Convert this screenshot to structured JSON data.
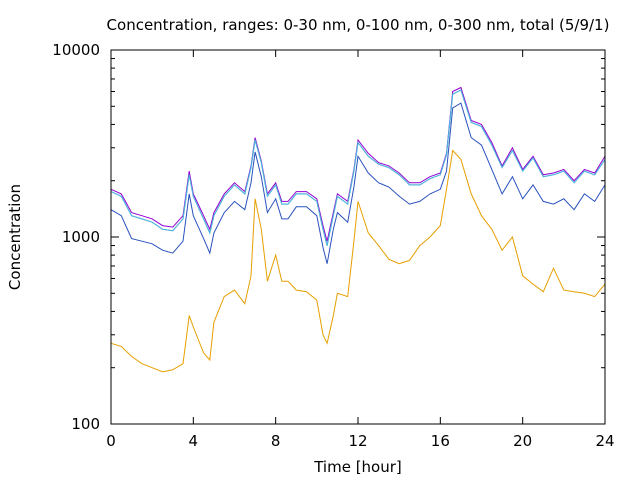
{
  "chart_data": {
    "type": "line",
    "title": "Concentration, ranges: 0-30 nm, 0-100 nm, 0-300 nm, total (5/9/1)",
    "xlabel": "Time [hour]",
    "ylabel": "Concentration",
    "xlim": [
      0,
      24
    ],
    "ylim": [
      100,
      10000
    ],
    "yscale": "log",
    "grid": false,
    "legend": "none",
    "x_ticks": [
      {
        "value": 0,
        "label": "0"
      },
      {
        "value": 4,
        "label": "4"
      },
      {
        "value": 8,
        "label": "8"
      },
      {
        "value": 12,
        "label": "12"
      },
      {
        "value": 16,
        "label": "16"
      },
      {
        "value": 20,
        "label": "20"
      },
      {
        "value": 24,
        "label": "24"
      }
    ],
    "y_ticks": [
      {
        "value": 100,
        "label": "100"
      },
      {
        "value": 1000,
        "label": "1000"
      },
      {
        "value": 10000,
        "label": "10000"
      }
    ],
    "x": [
      0,
      0.5,
      1,
      1.5,
      2,
      2.5,
      3,
      3.5,
      3.8,
      4,
      4.5,
      4.8,
      5,
      5.5,
      6,
      6.5,
      6.8,
      7,
      7.3,
      7.6,
      8,
      8.3,
      8.6,
      9,
      9.5,
      10,
      10.3,
      10.5,
      10.8,
      11,
      11.5,
      11.8,
      12,
      12.5,
      13,
      13.5,
      14,
      14.5,
      15,
      15.5,
      16,
      16.3,
      16.6,
      17,
      17.5,
      18,
      18.5,
      19,
      19.5,
      20,
      20.5,
      21,
      21.5,
      22,
      22.5,
      23,
      23.5,
      24
    ],
    "series": [
      {
        "color": "#9400d3",
        "values": [
          1800,
          1700,
          1350,
          1300,
          1250,
          1150,
          1130,
          1300,
          2250,
          1700,
          1300,
          1100,
          1350,
          1700,
          1950,
          1750,
          2400,
          3400,
          2550,
          1700,
          1950,
          1550,
          1550,
          1750,
          1750,
          1600,
          1150,
          950,
          1350,
          1700,
          1550,
          2300,
          3300,
          2800,
          2500,
          2400,
          2200,
          1950,
          1950,
          2100,
          2200,
          2800,
          6000,
          6300,
          4200,
          4000,
          3200,
          2400,
          3000,
          2300,
          2700,
          2150,
          2200,
          2300,
          2000,
          2300,
          2200,
          2700
        ]
      },
      {
        "color": "#009e73",
        "values": [
          1750,
          1650,
          1300,
          1250,
          1200,
          1100,
          1080,
          1250,
          2150,
          1650,
          1250,
          1050,
          1300,
          1650,
          1900,
          1700,
          2350,
          3300,
          2500,
          1650,
          1900,
          1500,
          1500,
          1700,
          1700,
          1550,
          1100,
          900,
          1300,
          1650,
          1500,
          2250,
          3200,
          2700,
          2450,
          2350,
          2150,
          1900,
          1900,
          2050,
          2150,
          2750,
          5800,
          6100,
          4100,
          3900,
          3100,
          2350,
          2900,
          2250,
          2650,
          2100,
          2150,
          2250,
          1950,
          2250,
          2150,
          2600
        ]
      },
      {
        "color": "#56b4e9",
        "values": [
          1750,
          1650,
          1300,
          1250,
          1200,
          1100,
          1080,
          1250,
          2150,
          1650,
          1250,
          1050,
          1300,
          1650,
          1900,
          1700,
          2350,
          3300,
          2500,
          1650,
          1900,
          1500,
          1500,
          1700,
          1700,
          1550,
          1100,
          900,
          1300,
          1650,
          1500,
          2250,
          3200,
          2700,
          2450,
          2350,
          2150,
          1900,
          1900,
          2050,
          2150,
          2750,
          5800,
          6100,
          4100,
          3900,
          3100,
          2350,
          2900,
          2250,
          2650,
          2100,
          2150,
          2250,
          1950,
          2250,
          2150,
          2600
        ]
      },
      {
        "color": "#2a52be",
        "values": [
          1400,
          1300,
          980,
          950,
          920,
          850,
          820,
          950,
          1700,
          1300,
          980,
          820,
          1050,
          1350,
          1550,
          1400,
          1950,
          2850,
          2100,
          1350,
          1600,
          1250,
          1250,
          1450,
          1450,
          1300,
          880,
          720,
          1100,
          1350,
          1200,
          1850,
          2700,
          2200,
          1950,
          1850,
          1650,
          1500,
          1550,
          1700,
          1800,
          2250,
          4900,
          5200,
          3400,
          3100,
          2300,
          1700,
          2100,
          1600,
          1900,
          1550,
          1500,
          1600,
          1400,
          1700,
          1550,
          1900
        ]
      },
      {
        "color": "#e69f00",
        "values": [
          270,
          260,
          230,
          210,
          200,
          190,
          195,
          210,
          380,
          330,
          240,
          220,
          350,
          480,
          520,
          440,
          620,
          1600,
          1100,
          580,
          800,
          580,
          580,
          520,
          510,
          460,
          300,
          270,
          380,
          500,
          480,
          950,
          1550,
          1050,
          900,
          760,
          720,
          750,
          900,
          1000,
          1150,
          1800,
          2900,
          2600,
          1700,
          1300,
          1100,
          850,
          1000,
          620,
          560,
          510,
          680,
          520,
          510,
          500,
          480,
          560
        ]
      }
    ]
  }
}
